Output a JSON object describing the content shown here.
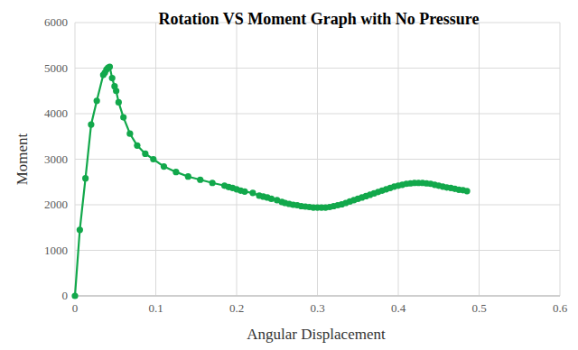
{
  "chart_data": {
    "type": "line",
    "title": "Rotation VS Moment Graph with No Pressure",
    "x_label": "Angular Displacement",
    "y_label": "Moment",
    "x": [
      0,
      0.006,
      0.013,
      0.02,
      0.027,
      0.035,
      0.037,
      0.039,
      0.041,
      0.043,
      0.046,
      0.049,
      0.051,
      0.054,
      0.06,
      0.068,
      0.077,
      0.087,
      0.097,
      0.11,
      0.125,
      0.14,
      0.155,
      0.17,
      0.185,
      0.19,
      0.195,
      0.2,
      0.205,
      0.21,
      0.22,
      0.228,
      0.233,
      0.238,
      0.243,
      0.25,
      0.256,
      0.26,
      0.265,
      0.27,
      0.275,
      0.28,
      0.285,
      0.29,
      0.295,
      0.3,
      0.305,
      0.31,
      0.315,
      0.32,
      0.325,
      0.33,
      0.335,
      0.34,
      0.345,
      0.35,
      0.355,
      0.36,
      0.365,
      0.37,
      0.375,
      0.38,
      0.385,
      0.39,
      0.395,
      0.4,
      0.405,
      0.41,
      0.415,
      0.42,
      0.425,
      0.43,
      0.435,
      0.44,
      0.445,
      0.45,
      0.455,
      0.46,
      0.465,
      0.47,
      0.475,
      0.48,
      0.485
    ],
    "values": [
      0,
      1450,
      2580,
      3760,
      4280,
      4850,
      4900,
      4970,
      5010,
      5030,
      4780,
      4600,
      4500,
      4250,
      3920,
      3560,
      3300,
      3120,
      3000,
      2840,
      2720,
      2620,
      2550,
      2480,
      2420,
      2390,
      2370,
      2340,
      2310,
      2290,
      2260,
      2200,
      2180,
      2160,
      2130,
      2100,
      2060,
      2040,
      2020,
      2000,
      1990,
      1970,
      1960,
      1950,
      1940,
      1940,
      1940,
      1940,
      1950,
      1970,
      1990,
      2010,
      2040,
      2070,
      2100,
      2130,
      2160,
      2190,
      2220,
      2250,
      2280,
      2310,
      2340,
      2370,
      2400,
      2420,
      2440,
      2460,
      2470,
      2480,
      2480,
      2480,
      2470,
      2460,
      2440,
      2420,
      2400,
      2380,
      2370,
      2350,
      2330,
      2320,
      2300
    ],
    "color": "#12a84b",
    "marker": "circle",
    "xlim": [
      0,
      0.6
    ],
    "xticks": [
      0,
      0.1,
      0.2,
      0.3,
      0.4,
      0.5,
      0.6
    ],
    "ylim": [
      0,
      6000
    ],
    "yticks": [
      0,
      1000,
      2000,
      3000,
      4000,
      5000,
      6000
    ],
    "grid": true
  }
}
